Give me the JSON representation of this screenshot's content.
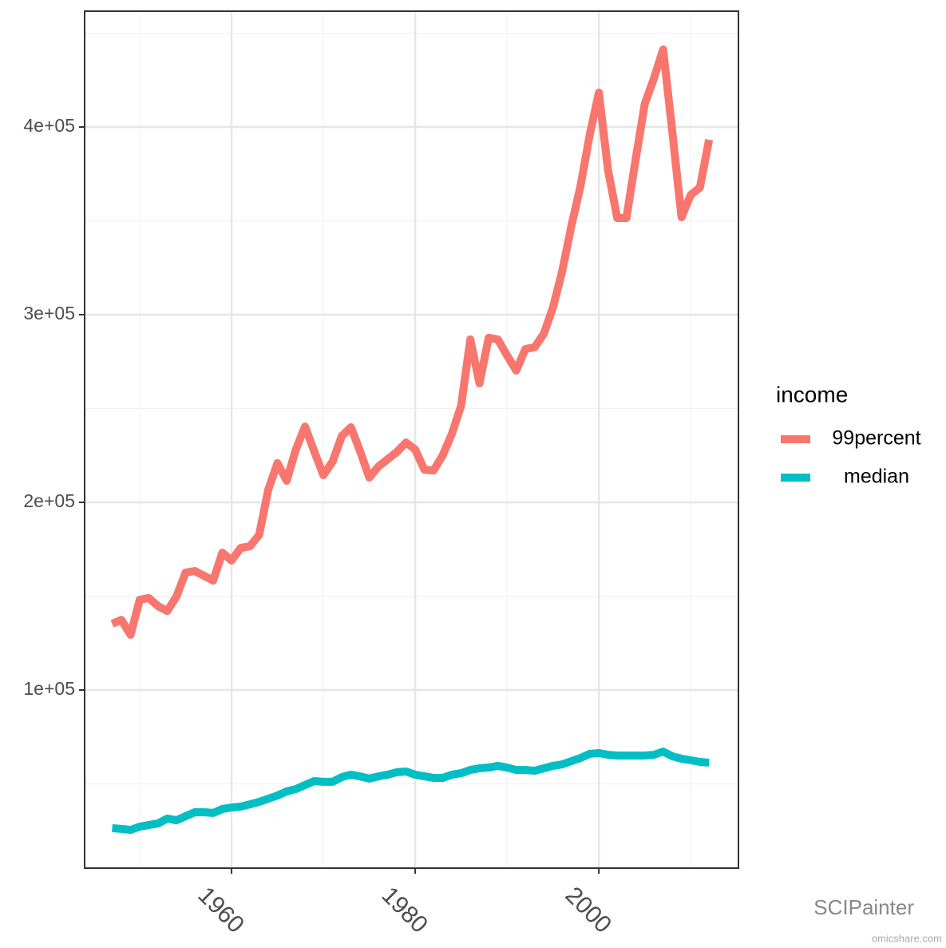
{
  "chart_data": {
    "type": "line",
    "x": [
      1947,
      1948,
      1949,
      1950,
      1951,
      1952,
      1953,
      1954,
      1955,
      1956,
      1957,
      1958,
      1959,
      1960,
      1961,
      1962,
      1963,
      1964,
      1965,
      1966,
      1967,
      1968,
      1969,
      1970,
      1971,
      1972,
      1973,
      1974,
      1975,
      1976,
      1977,
      1978,
      1979,
      1980,
      1981,
      1982,
      1983,
      1984,
      1985,
      1986,
      1987,
      1988,
      1989,
      1990,
      1991,
      1992,
      1993,
      1994,
      1995,
      1996,
      1997,
      1998,
      1999,
      2000,
      2001,
      2002,
      2003,
      2004,
      2005,
      2006,
      2007,
      2008,
      2009,
      2010,
      2011,
      2012
    ],
    "series": [
      {
        "name": "99percent",
        "color": "#F8766D",
        "values": [
          135300,
          137400,
          129400,
          148100,
          149000,
          144700,
          142100,
          149800,
          162600,
          163400,
          160900,
          158300,
          173200,
          169000,
          175700,
          176600,
          182600,
          206800,
          220900,
          211500,
          228100,
          240400,
          227200,
          214500,
          221700,
          235300,
          240000,
          227200,
          213200,
          219100,
          223000,
          226800,
          231900,
          228100,
          217400,
          217000,
          225100,
          236600,
          251500,
          286800,
          263400,
          287700,
          286800,
          278300,
          270200,
          281700,
          282600,
          289800,
          303800,
          323000,
          347200,
          368500,
          395700,
          418300,
          377000,
          351500,
          351500,
          382600,
          412300,
          426000,
          441300,
          397400,
          351900,
          363800,
          367700,
          393200
        ]
      },
      {
        "name": "median",
        "color": "#00BFC4",
        "values": [
          26400,
          26000,
          25500,
          27200,
          28100,
          28900,
          31500,
          30600,
          32800,
          34900,
          34900,
          34500,
          36600,
          37400,
          37900,
          39100,
          40400,
          42100,
          43800,
          46000,
          47200,
          49400,
          51500,
          51100,
          51100,
          53600,
          54900,
          54000,
          52800,
          54000,
          54900,
          56200,
          56600,
          54900,
          54000,
          53200,
          53200,
          54900,
          55700,
          57400,
          58300,
          58700,
          59600,
          58700,
          57400,
          57400,
          57000,
          58300,
          59600,
          60400,
          62100,
          63800,
          66000,
          66400,
          65500,
          65100,
          65100,
          65100,
          65100,
          65500,
          67200,
          64700,
          63400,
          62600,
          61700,
          61300
        ]
      }
    ],
    "xlim": [
      1944,
      2015.2
    ],
    "xticks": [
      1960,
      1980,
      2000
    ],
    "ylim": [
      5100,
      461700
    ],
    "yticks": [
      {
        "value": 100000,
        "label": "1e+05"
      },
      {
        "value": 200000,
        "label": "2e+05"
      },
      {
        "value": 300000,
        "label": "3e+05"
      },
      {
        "value": 400000,
        "label": "4e+05"
      }
    ],
    "grid": true,
    "legend_title": "income",
    "legend_position": "right",
    "watermark": [
      "SCIPainter",
      "omicshare.com"
    ]
  }
}
